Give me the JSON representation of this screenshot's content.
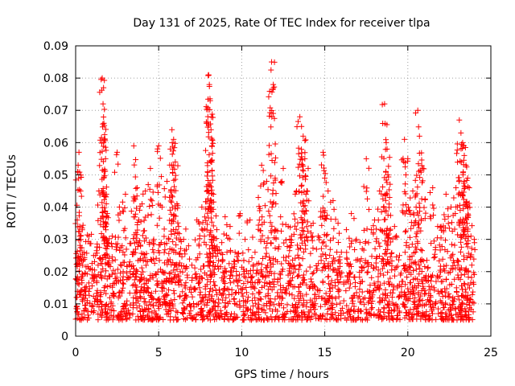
{
  "chart_data": {
    "type": "scatter",
    "title": "Day 131 of 2025, Rate Of TEC Index for receiver tlpa",
    "xlabel": "GPS time / hours",
    "ylabel": "ROTI / TECUs",
    "xlim": [
      0,
      25
    ],
    "ylim": [
      0,
      0.09
    ],
    "xticks": [
      "0",
      "5",
      "10",
      "15",
      "20",
      "25"
    ],
    "yticks": [
      "0",
      "0.01",
      "0.02",
      "0.03",
      "0.04",
      "0.05",
      "0.06",
      "0.07",
      "0.08",
      "0.09"
    ],
    "grid": true,
    "marker": "+",
    "color": "#ff0000",
    "series": [
      {
        "x": [
          0.05,
          0.1,
          0.15,
          0.2,
          0.25,
          0.3,
          0.35,
          0.4,
          0.5,
          0.6,
          0.7,
          0.8,
          1.0,
          1.2,
          1.4,
          1.6,
          1.65,
          1.7,
          1.75,
          1.8,
          1.85,
          1.9,
          2.0,
          2.2,
          2.5,
          2.8,
          3.0,
          3.2,
          3.5,
          3.7,
          3.8,
          3.9,
          4.0,
          4.2,
          4.5,
          4.7,
          5.0,
          5.2,
          5.5,
          5.7,
          5.8,
          5.9,
          6.0,
          6.1,
          6.2,
          6.5,
          6.8,
          7.0,
          7.3,
          7.6,
          7.9,
          8.0,
          8.05,
          8.1,
          8.15,
          8.2,
          8.3,
          8.5,
          8.8,
          9.0,
          9.3,
          9.6,
          9.9,
          10.2,
          10.5,
          10.8,
          11.0,
          11.2,
          11.5,
          11.8,
          11.9,
          12.0,
          12.2,
          12.5,
          12.8,
          13.0,
          13.3,
          13.5,
          13.6,
          13.7,
          13.8,
          14.0,
          14.3,
          14.6,
          14.9,
          15.0,
          15.2,
          15.5,
          15.8,
          16.0,
          16.3,
          16.6,
          16.9,
          17.2,
          17.5,
          17.8,
          18.0,
          18.3,
          18.6,
          18.7,
          18.75,
          18.8,
          18.9,
          19.2,
          19.5,
          19.8,
          20.0,
          20.3,
          20.5,
          20.6,
          20.7,
          20.9,
          21.2,
          21.5,
          21.8,
          22.0,
          22.3,
          22.6,
          22.9,
          23.1,
          23.2,
          23.3,
          23.4,
          23.5,
          23.6,
          23.7,
          23.8,
          24.0
        ],
        "y": [
          0.012,
          0.036,
          0.053,
          0.057,
          0.031,
          0.045,
          0.018,
          0.022,
          0.026,
          0.014,
          0.011,
          0.031,
          0.019,
          0.025,
          0.045,
          0.08,
          0.072,
          0.066,
          0.061,
          0.055,
          0.044,
          0.038,
          0.022,
          0.031,
          0.057,
          0.028,
          0.044,
          0.018,
          0.059,
          0.046,
          0.036,
          0.024,
          0.041,
          0.045,
          0.052,
          0.03,
          0.059,
          0.04,
          0.048,
          0.058,
          0.064,
          0.061,
          0.054,
          0.041,
          0.034,
          0.03,
          0.028,
          0.022,
          0.036,
          0.04,
          0.045,
          0.081,
          0.078,
          0.073,
          0.064,
          0.059,
          0.044,
          0.033,
          0.029,
          0.037,
          0.034,
          0.026,
          0.038,
          0.03,
          0.036,
          0.026,
          0.043,
          0.053,
          0.048,
          0.085,
          0.078,
          0.033,
          0.027,
          0.052,
          0.034,
          0.031,
          0.045,
          0.068,
          0.065,
          0.062,
          0.055,
          0.052,
          0.035,
          0.031,
          0.057,
          0.049,
          0.045,
          0.042,
          0.035,
          0.026,
          0.033,
          0.038,
          0.03,
          0.024,
          0.055,
          0.033,
          0.036,
          0.045,
          0.072,
          0.06,
          0.058,
          0.05,
          0.043,
          0.034,
          0.025,
          0.061,
          0.055,
          0.045,
          0.04,
          0.07,
          0.062,
          0.052,
          0.021,
          0.046,
          0.034,
          0.034,
          0.044,
          0.04,
          0.046,
          0.067,
          0.063,
          0.06,
          0.056,
          0.053,
          0.049,
          0.046,
          0.031,
          0.03
        ],
        "band": {
          "low": 0.005,
          "high": 0.022
        }
      }
    ]
  }
}
